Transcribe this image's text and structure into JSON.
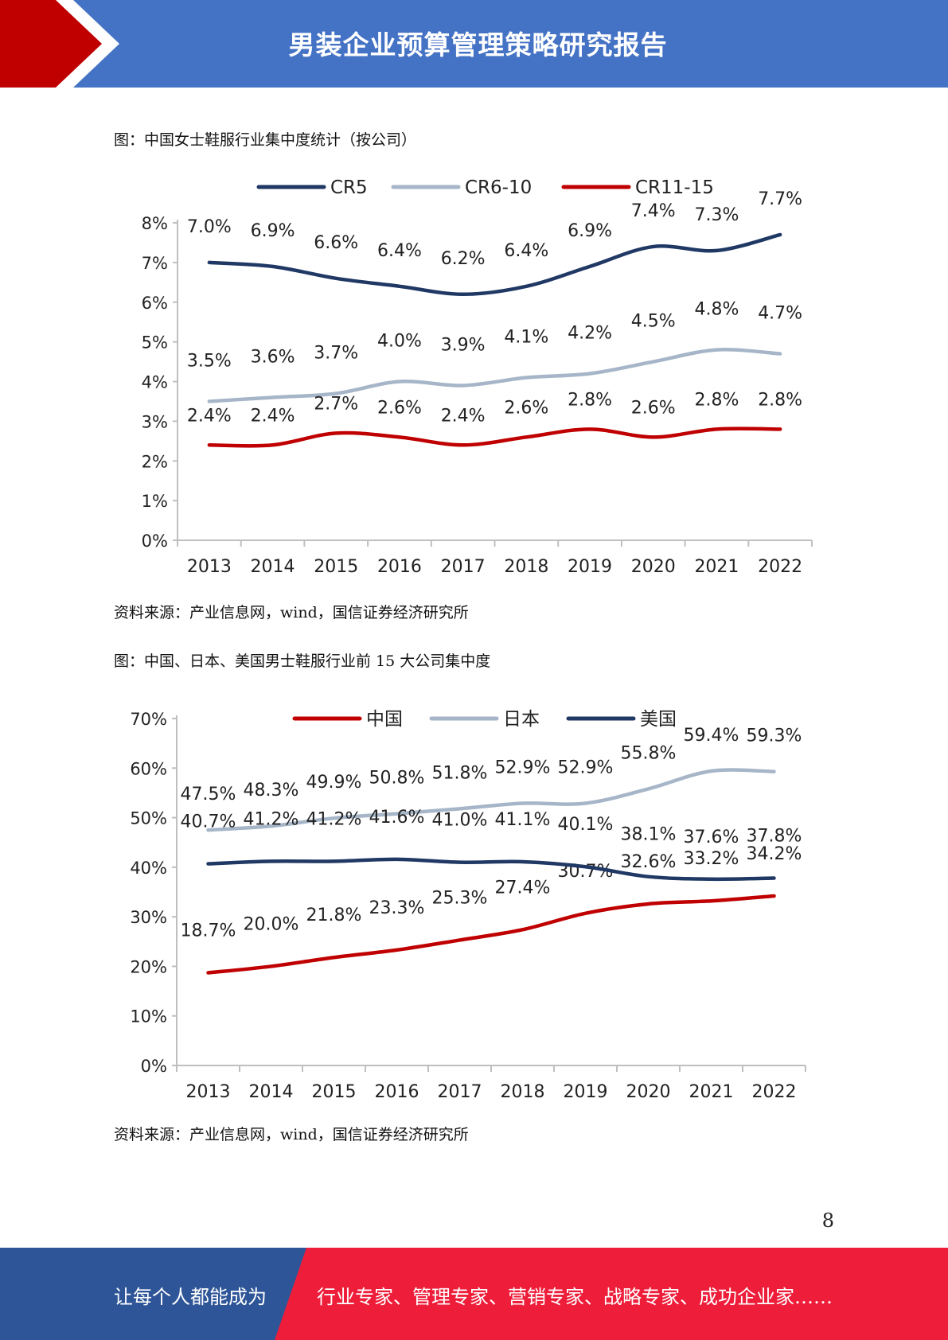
{
  "header": {
    "title": "男装企业预算管理策略研究报告",
    "colors": {
      "band": "#4472c4",
      "arrow": "#c00000"
    }
  },
  "captions": {
    "chart1": "图：中国女士鞋服行业集中度统计（按公司）",
    "chart1_source": "资料来源：产业信息网，wind，国信证券经济研究所",
    "chart2": "图：中国、日本、美国男士鞋服行业前  15  大公司集中度",
    "chart2_source": "资料来源：产业信息网，wind，国信证券经济研究所"
  },
  "chart_data": [
    {
      "type": "line",
      "title": "",
      "x": [
        "2013",
        "2014",
        "2015",
        "2016",
        "2017",
        "2018",
        "2019",
        "2020",
        "2021",
        "2022"
      ],
      "yticks": [
        "0%",
        "1%",
        "2%",
        "3%",
        "4%",
        "5%",
        "6%",
        "7%",
        "8%"
      ],
      "ylim": [
        0,
        8
      ],
      "legend_position": "top",
      "series": [
        {
          "name": "CR5",
          "color": "#1f3864",
          "values": [
            7.0,
            6.9,
            6.6,
            6.4,
            6.2,
            6.4,
            6.9,
            7.4,
            7.3,
            7.7
          ],
          "labels": [
            "7.0%",
            "6.9%",
            "6.6%",
            "6.4%",
            "6.2%",
            "6.4%",
            "6.9%",
            "7.4%",
            "7.3%",
            "7.7%"
          ]
        },
        {
          "name": "CR6-10",
          "color": "#a6b6c8",
          "values": [
            3.5,
            3.6,
            3.7,
            4.0,
            3.9,
            4.1,
            4.2,
            4.5,
            4.8,
            4.7
          ],
          "labels": [
            "3.5%",
            "3.6%",
            "3.7%",
            "4.0%",
            "3.9%",
            "4.1%",
            "4.2%",
            "4.5%",
            "4.8%",
            "4.7%"
          ]
        },
        {
          "name": "CR11-15",
          "color": "#c00000",
          "values": [
            2.4,
            2.4,
            2.7,
            2.6,
            2.4,
            2.6,
            2.8,
            2.6,
            2.8,
            2.8
          ],
          "labels": [
            "2.4%",
            "2.4%",
            "2.7%",
            "2.6%",
            "2.4%",
            "2.6%",
            "2.8%",
            "2.6%",
            "2.8%",
            "2.8%"
          ]
        }
      ]
    },
    {
      "type": "line",
      "title": "",
      "x": [
        "2013",
        "2014",
        "2015",
        "2016",
        "2017",
        "2018",
        "2019",
        "2020",
        "2021",
        "2022"
      ],
      "yticks": [
        "0%",
        "10%",
        "20%",
        "30%",
        "40%",
        "50%",
        "60%",
        "70%"
      ],
      "ylim": [
        0,
        70
      ],
      "legend_position": "top",
      "series": [
        {
          "name": "中国",
          "color": "#c00000",
          "values": [
            18.7,
            20.0,
            21.8,
            23.3,
            25.3,
            27.4,
            30.7,
            32.6,
            33.2,
            34.2
          ],
          "labels": [
            "18.7%",
            "20.0%",
            "21.8%",
            "23.3%",
            "25.3%",
            "27.4%",
            "30.7%",
            "32.6%",
            "33.2%",
            "34.2%"
          ]
        },
        {
          "name": "日本",
          "color": "#a6b6c8",
          "values": [
            47.5,
            48.3,
            49.9,
            50.8,
            51.8,
            52.9,
            52.9,
            55.8,
            59.4,
            59.3
          ],
          "labels": [
            "47.5%",
            "48.3%",
            "49.9%",
            "50.8%",
            "51.8%",
            "52.9%",
            "52.9%",
            "55.8%",
            "59.4%",
            "59.3%"
          ]
        },
        {
          "name": "美国",
          "color": "#1f3864",
          "values": [
            40.7,
            41.2,
            41.2,
            41.6,
            41.0,
            41.1,
            40.1,
            38.1,
            37.6,
            37.8
          ],
          "labels": [
            "40.7%",
            "41.2%",
            "41.2%",
            "41.6%",
            "41.0%",
            "41.1%",
            "40.1%",
            "38.1%",
            "37.6%",
            "37.8%"
          ]
        }
      ]
    }
  ],
  "page_number": "8",
  "footer": {
    "left": "让每个人都能成为",
    "right": "行业专家、管理专家、营销专家、战略专家、成功企业家……",
    "colors": {
      "left_band": "#2e5597",
      "right_band": "#ee1d3a"
    }
  }
}
